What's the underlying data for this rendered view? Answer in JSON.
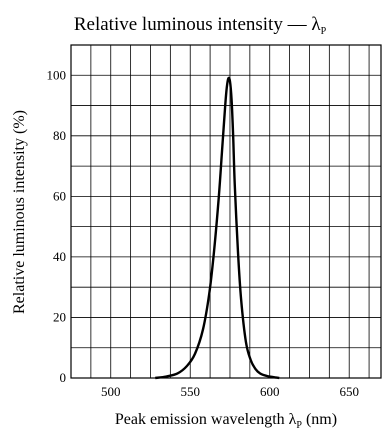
{
  "chart_data": {
    "type": "line",
    "title": "Relative luminous intensity — λ",
    "title_sub": "P",
    "xlabel": "Peak emission wavelength  λ",
    "xlabel_sub": "P",
    "xlabel_unit": " (nm)",
    "ylabel": "Relative luminous intensity  (%)",
    "xlim": [
      475,
      670
    ],
    "ylim": [
      0,
      110
    ],
    "x_ticks": [
      500,
      550,
      600,
      650
    ],
    "y_ticks": [
      0,
      20,
      40,
      60,
      80,
      100
    ],
    "x_tick_labels": [
      "500",
      "550",
      "600",
      "650"
    ],
    "y_tick_labels": [
      "0",
      "20",
      "40",
      "60",
      "80",
      "100"
    ],
    "x_gridlines": [
      487.5,
      500,
      512.5,
      525,
      537.5,
      550,
      562.5,
      575,
      587.5,
      600,
      612.5,
      625,
      637.5,
      650,
      662.5
    ],
    "y_gridlines": [
      10,
      20,
      30,
      40,
      50,
      60,
      70,
      80,
      90,
      100
    ],
    "grid": true,
    "series": [
      {
        "color": "#000000",
        "x": [
          528,
          535,
          542,
          548,
          553,
          558,
          562,
          565,
          568,
          570,
          572,
          573,
          574,
          575,
          576,
          577,
          578,
          580,
          582,
          585,
          588,
          591,
          594,
          598,
          602,
          606
        ],
        "y": [
          0,
          0.5,
          1.5,
          4,
          8,
          16,
          28,
          42,
          60,
          75,
          90,
          96,
          99,
          98,
          92,
          80,
          64,
          42,
          26,
          12,
          6,
          3,
          1.5,
          0.7,
          0.3,
          0
        ]
      }
    ]
  }
}
